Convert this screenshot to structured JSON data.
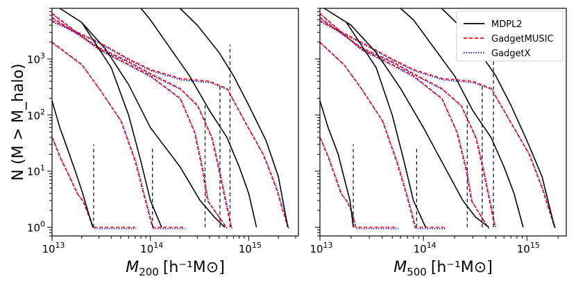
{
  "chart_data": {
    "type": "line",
    "shared": {
      "ylabel": "N (M > M_halo)",
      "y_scale": "log",
      "x_scale": "log",
      "ylim": [
        0.7,
        8000
      ],
      "yticks": [
        "10^0",
        "10^1",
        "10^2",
        "10^3"
      ],
      "legend": {
        "position": "top-right of right panel",
        "entries": [
          {
            "name": "MDPL2",
            "color": "#000000",
            "style": "solid"
          },
          {
            "name": "GadgetMUSIC",
            "color": "#ff0000",
            "style": "dashed"
          },
          {
            "name": "GadgetX",
            "color": "#0000ff",
            "style": "dotted"
          }
        ]
      }
    },
    "panels": [
      {
        "id": "m200",
        "xlabel_main": "M",
        "xlabel_sub": "200",
        "xlabel_unit": "[h⁻¹M⊙]",
        "xlim": [
          10000000000000.0,
          3200000000000000.0
        ],
        "xticks": [
          "10^13",
          "10^14",
          "10^15"
        ],
        "vlines": [
          26500000000000.0,
          105000000000000.0,
          360000000000000.0,
          510000000000000.0,
          645000000000000.0
        ],
        "mdpl2": [
          {
            "x": [
              10000000000000.0,
              12000000000000.0,
              15000000000000.0,
              18000000000000.0,
              20500000000000.0,
              23000000000000.0,
              26000000000000.0
            ],
            "y": [
              180,
              60,
              20,
              8,
              4,
              2,
              1
            ]
          },
          {
            "x": [
              20000000000000.0,
              40000000000000.0,
              60000000000000.0,
              80000000000000.0,
              100000000000000.0,
              130000000000000.0
            ],
            "y": [
              4500,
              700,
              100,
              15,
              3,
              1
            ]
          },
          {
            "x": [
              12000000000000.0,
              20000000000000.0,
              35000000000000.0,
              60000000000000.0,
              100000000000000.0,
              200000000000000.0,
              320000000000000.0,
              450000000000000.0,
              570000000000000.0
            ],
            "y": [
              8000,
              4500,
              1500,
              350,
              60,
              12,
              3,
              1.5,
              1
            ]
          },
          {
            "x": [
              80000000000000.0,
              100000000000000.0,
              150000000000000.0,
              250000000000000.0,
              400000000000000.0,
              600000000000000.0,
              800000000000000.0,
              1000000000000000.0,
              1200000000000000.0
            ],
            "y": [
              8000,
              5000,
              1800,
              500,
              120,
              40,
              12,
              4,
              1
            ]
          },
          {
            "x": [
              200000000000000.0,
              300000000000000.0,
              500000000000000.0,
              700000000000000.0,
              1000000000000000.0,
              1500000000000000.0,
              2000000000000000.0,
              2500000000000000.0
            ],
            "y": [
              8000,
              4000,
              1300,
              500,
              150,
              35,
              8,
              1
            ]
          }
        ],
        "sims": [
          {
            "x": [
              10000000000000.0,
              12000000000000.0,
              15000000000000.0,
              18000000000000.0,
              20500000000000.0,
              22500000000000.0,
              26000000000000.0,
              70000000000000.0
            ],
            "y": [
              40,
              18,
              8,
              4,
              3,
              2,
              1,
              1
            ]
          },
          {
            "x": [
              10000000000000.0,
              20000000000000.0,
              30000000000000.0,
              50000000000000.0,
              70000000000000.0,
              85000000000000.0,
              105000000000000.0,
              220000000000000.0
            ],
            "y": [
              2000,
              800,
              300,
              80,
              15,
              4,
              1,
              1
            ]
          },
          {
            "x": [
              10000000000000.0,
              30000000000000.0,
              60000000000000.0,
              100000000000000.0,
              200000000000000.0,
              280000000000000.0,
              340000000000000.0,
              380000000000000.0,
              590000000000000.0
            ],
            "y": [
              6500,
              1500,
              800,
              500,
              200,
              50,
              10,
              3,
              1
            ]
          },
          {
            "x": [
              10000000000000.0,
              30000000000000.0,
              60000000000000.0,
              100000000000000.0,
              200000000000000.0,
              300000000000000.0,
              420000000000000.0,
              500000000000000.0,
              660000000000000.0
            ],
            "y": [
              5500,
              1600,
              900,
              550,
              300,
              150,
              40,
              10,
              1
            ]
          },
          {
            "x": [
              10000000000000.0,
              30000000000000.0,
              60000000000000.0,
              100000000000000.0,
              200000000000000.0,
              400000000000000.0,
              600000000000000.0,
              900000000000000.0,
              1400000000000000.0,
              1900000000000000.0,
              2500000000000000.0
            ],
            "y": [
              4800,
              2000,
              1000,
              650,
              450,
              400,
              300,
              80,
              20,
              5,
              1
            ]
          }
        ]
      },
      {
        "id": "m500",
        "xlabel_main": "M",
        "xlabel_sub": "500",
        "xlabel_unit": "[h⁻¹M⊙]",
        "xlim": [
          10000000000000.0,
          2400000000000000.0
        ],
        "xticks": [
          "10^13",
          "10^14",
          "10^15"
        ],
        "vlines": [
          21000000000000.0,
          86000000000000.0,
          265000000000000.0,
          370000000000000.0,
          475000000000000.0
        ],
        "mdpl2": [
          {
            "x": [
              10000000000000.0,
              12000000000000.0,
              15000000000000.0,
              17000000000000.0,
              19500000000000.0,
              21000000000000.0
            ],
            "y": [
              180,
              60,
              20,
              8,
              3,
              1
            ]
          },
          {
            "x": [
              18000000000000.0,
              35000000000000.0,
              50000000000000.0,
              65000000000000.0,
              80000000000000.0,
              105000000000000.0
            ],
            "y": [
              4500,
              700,
              100,
              15,
              3,
              1
            ]
          },
          {
            "x": [
              11000000000000.0,
              20000000000000.0,
              35000000000000.0,
              60000000000000.0,
              100000000000000.0,
              160000000000000.0,
              240000000000000.0,
              320000000000000.0,
              430000000000000.0
            ],
            "y": [
              8000,
              4000,
              1300,
              300,
              60,
              12,
              3,
              1.5,
              1
            ]
          },
          {
            "x": [
              60000000000000.0,
              80000000000000.0,
              120000000000000.0,
              200000000000000.0,
              300000000000000.0,
              450000000000000.0,
              600000000000000.0,
              750000000000000.0,
              920000000000000.0
            ],
            "y": [
              8000,
              5000,
              1800,
              500,
              120,
              40,
              12,
              4,
              1
            ]
          },
          {
            "x": [
              150000000000000.0,
              220000000000000.0,
              350000000000000.0,
              500000000000000.0,
              700000000000000.0,
              1000000000000000.0,
              1400000000000000.0,
              1850000000000000.0
            ],
            "y": [
              8000,
              4000,
              1300,
              500,
              150,
              35,
              8,
              1
            ]
          }
        ],
        "sims": [
          {
            "x": [
              10000000000000.0,
              12000000000000.0,
              14000000000000.0,
              16000000000000.0,
              18000000000000.0,
              20000000000000.0,
              22000000000000.0,
              56000000000000.0
            ],
            "y": [
              40,
              18,
              8,
              4,
              3,
              2,
              1,
              1
            ]
          },
          {
            "x": [
              10000000000000.0,
              17000000000000.0,
              25000000000000.0,
              40000000000000.0,
              55000000000000.0,
              68000000000000.0,
              83000000000000.0,
              160000000000000.0
            ],
            "y": [
              2000,
              800,
              300,
              80,
              15,
              4,
              1,
              1
            ]
          },
          {
            "x": [
              10000000000000.0,
              25000000000000.0,
              50000000000000.0,
              80000000000000.0,
              150000000000000.0,
              210000000000000.0,
              260000000000000.0,
              290000000000000.0,
              420000000000000.0
            ],
            "y": [
              6500,
              1500,
              800,
              500,
              200,
              50,
              10,
              3,
              1
            ]
          },
          {
            "x": [
              10000000000000.0,
              25000000000000.0,
              50000000000000.0,
              80000000000000.0,
              150000000000000.0,
              230000000000000.0,
              320000000000000.0,
              380000000000000.0,
              490000000000000.0
            ],
            "y": [
              5500,
              1600,
              900,
              550,
              300,
              150,
              40,
              10,
              1
            ]
          },
          {
            "x": [
              10000000000000.0,
              25000000000000.0,
              50000000000000.0,
              80000000000000.0,
              150000000000000.0,
              300000000000000.0,
              450000000000000.0,
              680000000000000.0,
              1050000000000000.0,
              1400000000000000.0,
              1850000000000000.0
            ],
            "y": [
              4800,
              2000,
              1000,
              650,
              450,
              400,
              300,
              80,
              20,
              5,
              1
            ]
          }
        ]
      }
    ]
  }
}
